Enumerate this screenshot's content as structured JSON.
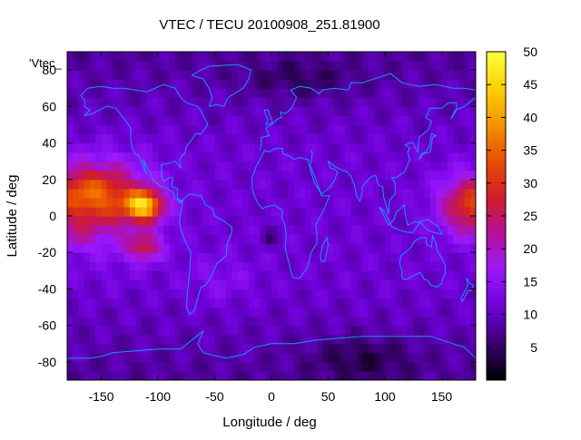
{
  "chart_data": {
    "type": "heatmap",
    "title": "VTEC / TECU 20100908_251.81900",
    "xlabel": "Longitude / deg",
    "ylabel": "Latitude / deg",
    "series_key": "'Vtec_",
    "xlim": [
      -180,
      180
    ],
    "ylim": [
      -90,
      90
    ],
    "x_ticks": [
      -150,
      -100,
      -50,
      0,
      50,
      100,
      150
    ],
    "y_ticks": [
      -80,
      -60,
      -40,
      -20,
      0,
      20,
      40,
      60,
      80
    ],
    "colorbar": {
      "range": [
        0,
        50
      ],
      "ticks": [
        5,
        10,
        15,
        20,
        25,
        30,
        35,
        40,
        45,
        50
      ],
      "palette": [
        "#000000",
        "#3a0070",
        "#6e00d8",
        "#9a19ff",
        "#b3109a",
        "#d01c2c",
        "#e84d00",
        "#f59300",
        "#fcd200",
        "#ffff40"
      ]
    },
    "grid": false,
    "coastlines_color": "#1e90ff"
  }
}
